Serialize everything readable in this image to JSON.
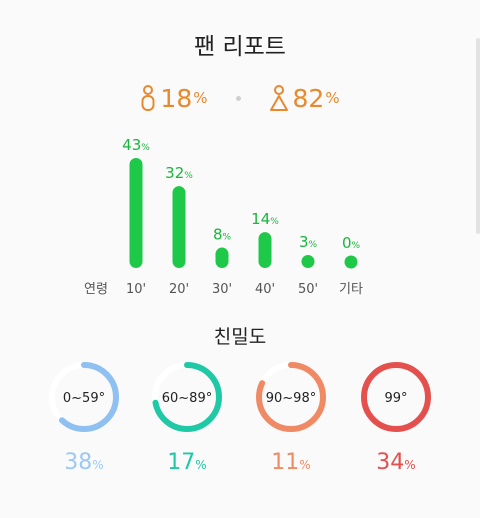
{
  "header": {
    "title": "팬 리포트"
  },
  "gender": {
    "unit": "%",
    "male": {
      "value": 18,
      "label": "18",
      "icon": "male-person-icon"
    },
    "female": {
      "value": 82,
      "label": "82",
      "icon": "female-person-icon"
    },
    "color": "#e8892f"
  },
  "age_section": {
    "axis_label": "연령"
  },
  "affinity_section": {
    "title": "친밀도"
  },
  "colors": {
    "bar": "#1ec848",
    "bar_label": "#1bb43d",
    "ring_track": "#ffffff"
  },
  "chart_data": [
    {
      "type": "bar",
      "categories": [
        "10'",
        "20'",
        "30'",
        "40'",
        "50'",
        "기타"
      ],
      "values": [
        43,
        32,
        8,
        14,
        3,
        0
      ],
      "value_labels": [
        "43",
        "32",
        "8",
        "14",
        "3",
        "0"
      ],
      "unit": "%",
      "xlabel": "연령",
      "ylim": [
        0,
        43
      ]
    },
    {
      "type": "donut",
      "items": [
        {
          "range": "0~59°",
          "value": 38,
          "label": "38",
          "color": "#8ec0f2",
          "label_color": "#9cc8f4"
        },
        {
          "range": "60~89°",
          "value": 17,
          "label": "17",
          "color": "#1fc9a6",
          "label_color": "#1fc9a6"
        },
        {
          "range": "90~98°",
          "value": 11,
          "label": "11",
          "color": "#f08a65",
          "label_color": "#f08a65"
        },
        {
          "range": "99°",
          "value": 34,
          "label": "34",
          "color": "#e4504d",
          "label_color": "#e4504d"
        }
      ],
      "unit": "%"
    }
  ]
}
